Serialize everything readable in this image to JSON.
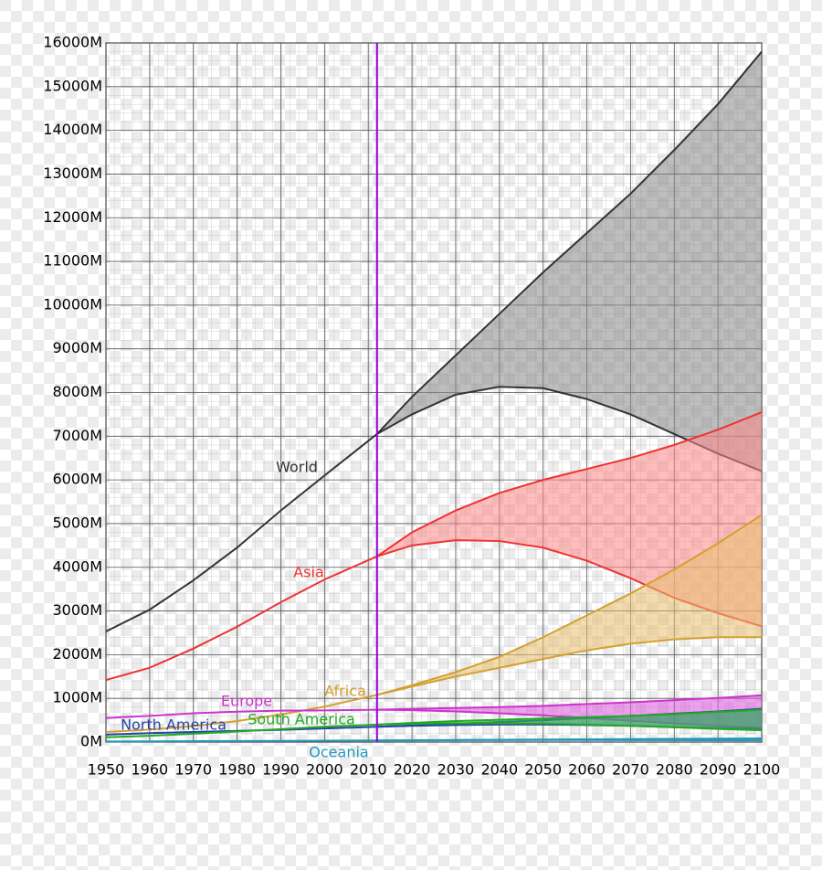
{
  "chart_data": {
    "type": "line",
    "x": [
      1950,
      1960,
      1970,
      1980,
      1990,
      2000,
      2012,
      2020,
      2030,
      2040,
      2050,
      2060,
      2070,
      2080,
      2090,
      2100
    ],
    "xlim": [
      1950,
      2100
    ],
    "xticks": [
      1950,
      1960,
      1970,
      1980,
      1990,
      2000,
      2010,
      2020,
      2030,
      2040,
      2050,
      2060,
      2070,
      2080,
      2090,
      2100
    ],
    "ylim": [
      0,
      16000
    ],
    "yticks": [
      {
        "value": 0,
        "label": "0M"
      },
      {
        "value": 1000,
        "label": "1000M"
      },
      {
        "value": 2000,
        "label": "2000M"
      },
      {
        "value": 3000,
        "label": "3000M"
      },
      {
        "value": 4000,
        "label": "4000M"
      },
      {
        "value": 5000,
        "label": "5000M"
      },
      {
        "value": 6000,
        "label": "6000M"
      },
      {
        "value": 7000,
        "label": "7000M"
      },
      {
        "value": 8000,
        "label": "8000M"
      },
      {
        "value": 9000,
        "label": "9000M"
      },
      {
        "value": 10000,
        "label": "10000M"
      },
      {
        "value": 11000,
        "label": "11000M"
      },
      {
        "value": 12000,
        "label": "12000M"
      },
      {
        "value": 13000,
        "label": "13000M"
      },
      {
        "value": 14000,
        "label": "14000M"
      },
      {
        "value": 15000,
        "label": "15000M"
      },
      {
        "value": 16000,
        "label": "16000M"
      }
    ],
    "grid": true,
    "vline": {
      "x": 2012,
      "color": "#9900dd"
    },
    "series": [
      {
        "name": "World",
        "color": "#333333",
        "band_color": "#888888",
        "values": [
          2530,
          3030,
          3700,
          4450,
          5300,
          6100,
          7050,
          null,
          null,
          null,
          null,
          null,
          null,
          null,
          null,
          null
        ],
        "high": [
          null,
          null,
          null,
          null,
          null,
          null,
          7050,
          7900,
          8850,
          9800,
          10750,
          11650,
          12550,
          13550,
          14600,
          15800
        ],
        "low": [
          null,
          null,
          null,
          null,
          null,
          null,
          7050,
          7500,
          7950,
          8130,
          8100,
          7850,
          7500,
          7050,
          6600,
          6200
        ]
      },
      {
        "name": "Asia",
        "color": "#ee3333",
        "band_color": "#ff8888",
        "values": [
          1420,
          1700,
          2140,
          2640,
          3200,
          3720,
          4250,
          null,
          null,
          null,
          null,
          null,
          null,
          null,
          null,
          null
        ],
        "high": [
          null,
          null,
          null,
          null,
          null,
          null,
          4250,
          4800,
          5300,
          5700,
          6000,
          6250,
          6500,
          6800,
          7150,
          7550
        ],
        "low": [
          null,
          null,
          null,
          null,
          null,
          null,
          4250,
          4500,
          4620,
          4600,
          4450,
          4150,
          3750,
          3300,
          2950,
          2650
        ]
      },
      {
        "name": "Africa",
        "color": "#d4a030",
        "band_color": "#e8c070",
        "values": [
          230,
          285,
          365,
          480,
          630,
          810,
          1080,
          null,
          null,
          null,
          null,
          null,
          null,
          null,
          null,
          null
        ],
        "high": [
          null,
          null,
          null,
          null,
          null,
          null,
          1080,
          1300,
          1600,
          1950,
          2400,
          2900,
          3400,
          3950,
          4550,
          5200
        ],
        "low": [
          null,
          null,
          null,
          null,
          null,
          null,
          1080,
          1270,
          1500,
          1700,
          1900,
          2100,
          2250,
          2350,
          2400,
          2400
        ]
      },
      {
        "name": "Europe",
        "color": "#cc33cc",
        "band_color": "#dd55dd",
        "values": [
          550,
          600,
          660,
          695,
          720,
          725,
          740,
          null,
          null,
          null,
          null,
          null,
          null,
          null,
          null,
          null
        ],
        "high": [
          null,
          null,
          null,
          null,
          null,
          null,
          740,
          760,
          780,
          800,
          830,
          870,
          910,
          960,
          1010,
          1070
        ],
        "low": [
          null,
          null,
          null,
          null,
          null,
          null,
          740,
          730,
          700,
          660,
          610,
          550,
          490,
          430,
          370,
          330
        ]
      },
      {
        "name": "North America",
        "color": "#2244aa",
        "band_color": "#4466cc",
        "values": [
          170,
          205,
          230,
          255,
          280,
          310,
          350,
          null,
          null,
          null,
          null,
          null,
          null,
          null,
          null,
          null
        ],
        "high": [
          null,
          null,
          null,
          null,
          null,
          null,
          350,
          380,
          420,
          460,
          500,
          550,
          600,
          650,
          700,
          760
        ],
        "low": [
          null,
          null,
          null,
          null,
          null,
          null,
          350,
          370,
          390,
          400,
          400,
          390,
          370,
          340,
          320,
          300
        ]
      },
      {
        "name": "South America",
        "color": "#22aa22",
        "band_color": "#44bb44",
        "values": [
          110,
          145,
          190,
          240,
          295,
          350,
          400,
          null,
          null,
          null,
          null,
          null,
          null,
          null,
          null,
          null
        ],
        "high": [
          null,
          null,
          null,
          null,
          null,
          null,
          400,
          440,
          480,
          510,
          540,
          570,
          600,
          640,
          690,
          740
        ],
        "low": [
          null,
          null,
          null,
          null,
          null,
          null,
          400,
          420,
          430,
          430,
          420,
          400,
          370,
          340,
          300,
          270
        ]
      },
      {
        "name": "Oceania",
        "color": "#2299bb",
        "band_color": "#44aacc",
        "values": [
          13,
          16,
          20,
          23,
          27,
          31,
          37,
          null,
          null,
          null,
          null,
          null,
          null,
          null,
          null,
          null
        ],
        "high": [
          null,
          null,
          null,
          null,
          null,
          null,
          37,
          42,
          48,
          53,
          58,
          63,
          68,
          73,
          78,
          83
        ],
        "low": [
          null,
          null,
          null,
          null,
          null,
          null,
          37,
          40,
          43,
          45,
          46,
          46,
          45,
          44,
          42,
          40
        ]
      }
    ]
  }
}
